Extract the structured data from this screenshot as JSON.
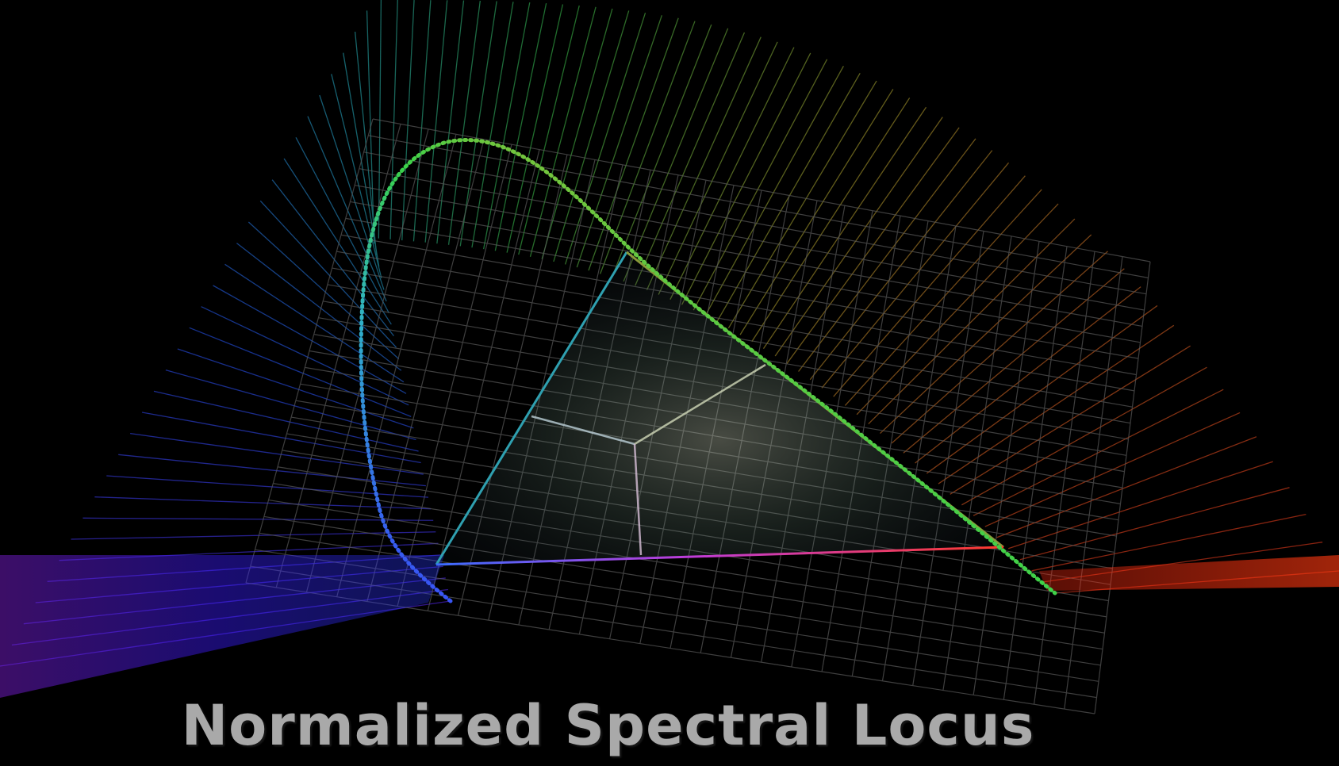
{
  "caption": "Normalized Spectral Locus",
  "colors": {
    "background": "#000000",
    "caption": "#a9a9a9",
    "grid": "#5a5a5a",
    "locus_violet": "#5a1cff",
    "locus_blue": "#2a4cff",
    "locus_cyan": "#2fc7c9",
    "locus_green": "#3ad24a",
    "locus_yellow": "#c8b02a",
    "locus_red": "#ff2a1c",
    "purple_line": "#c03cd8"
  },
  "icons": [
    "spectral-locus-curve",
    "color-gamut-triangle",
    "wireframe-grid",
    "spectral-ruled-surface"
  ]
}
